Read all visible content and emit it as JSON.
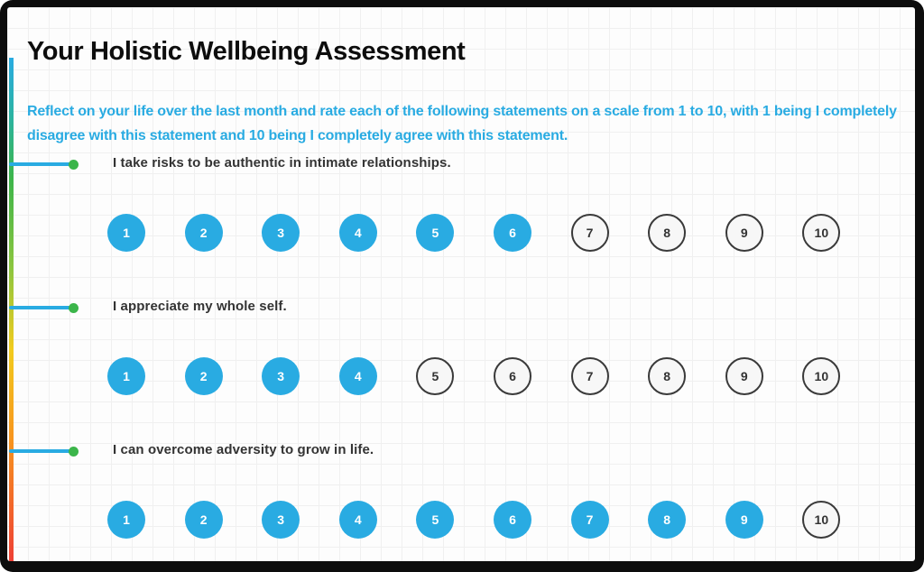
{
  "card": {
    "title": "Your Holistic Wellbeing Assessment",
    "instructions": "Reflect on your life over the last month and rate each of the following statements on a scale from 1 to 10, with 1 being I completely disagree with this statement and 10 being I completely agree with this statement."
  },
  "rating_scale": {
    "min": 1,
    "max": 10
  },
  "questions": [
    {
      "text": "I take risks to be authentic in intimate relationships.",
      "selected_rating": 6
    },
    {
      "text": "I appreciate my whole self.",
      "selected_rating": 4
    },
    {
      "text": "I can overcome adversity to grow in life.",
      "selected_rating": 9
    }
  ],
  "colors": {
    "accent_blue": "#29ABE2",
    "question_text": "#333333",
    "selected_circle_fill": "#29ABE2",
    "selected_circle_text": "#FFFFFF",
    "unselected_circle_border": "#3A3A3A",
    "unselected_circle_fill": "#F7F7F7",
    "connector_dot_green": "#3BB54A",
    "gradient_bar": [
      "#29ABE2",
      "#2BB3A0",
      "#3CB54A",
      "#8DC63F",
      "#F2CB1D",
      "#F7941E",
      "#EE4035"
    ]
  }
}
